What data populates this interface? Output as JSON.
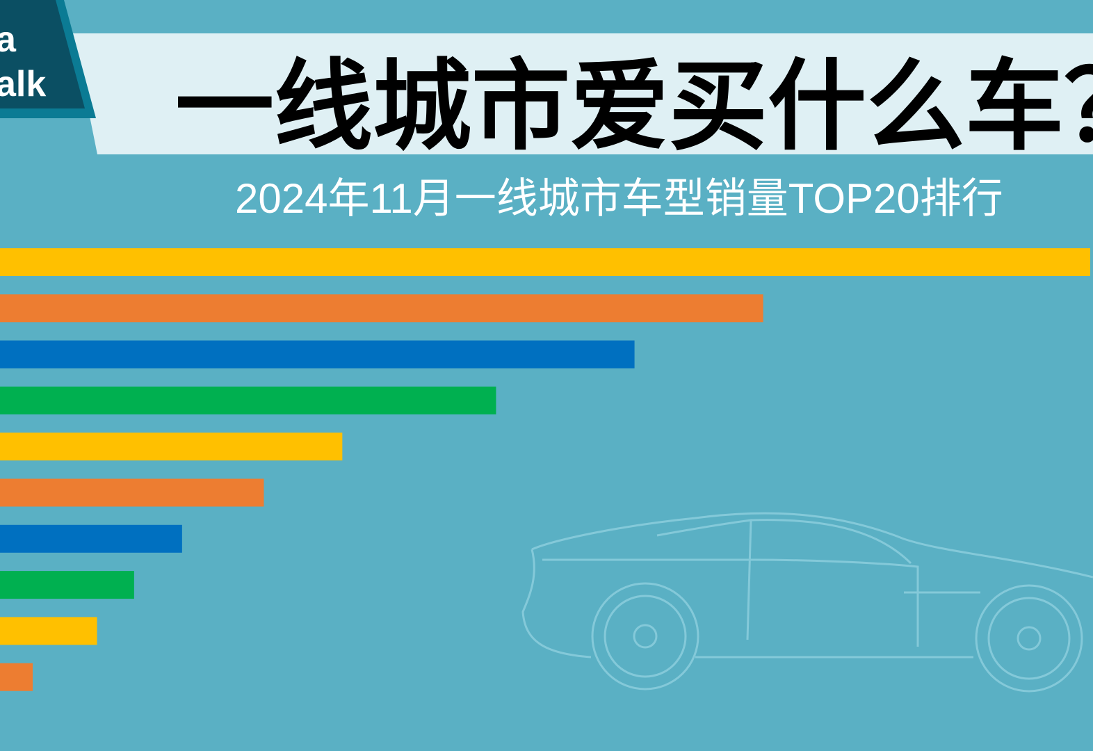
{
  "logo": {
    "line1": "a",
    "line2": "alk"
  },
  "chart_data": {
    "type": "bar",
    "orientation": "horizontal",
    "title": "一线城市爱买什么车？",
    "subtitle": "2024年11月一线城市车型销量TOP20排行",
    "values": [
      100,
      70,
      58.2,
      45.5,
      31.4,
      24.2,
      16.7,
      12.3,
      8.9,
      3.0
    ],
    "colors": [
      "#ffc000",
      "#ed7d31",
      "#0070c0",
      "#00b050",
      "#ffc000",
      "#ed7d31",
      "#0070c0",
      "#00b050",
      "#ffc000",
      "#ed7d31"
    ],
    "xlim": [
      0,
      100
    ]
  }
}
